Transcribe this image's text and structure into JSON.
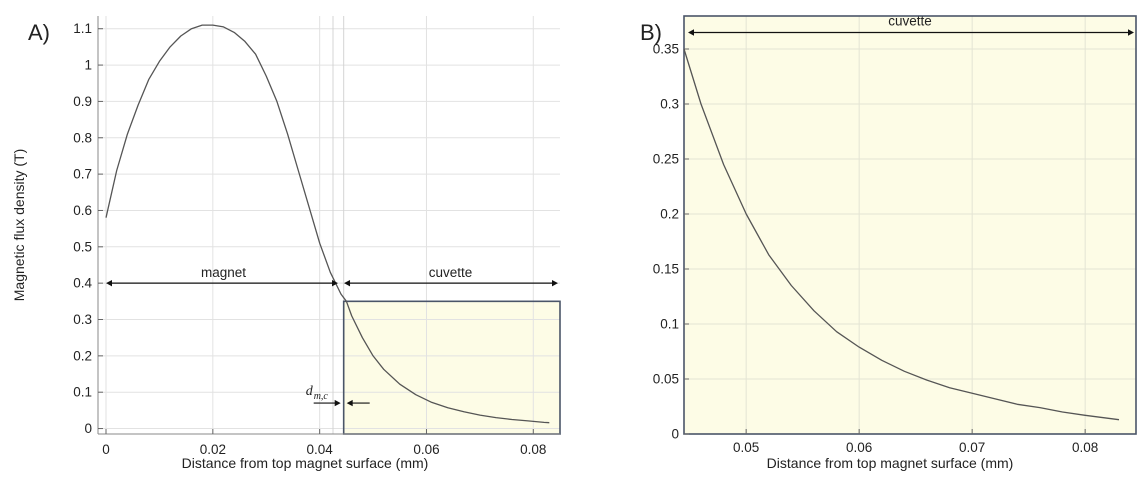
{
  "chart_data": [
    {
      "panel": "A)",
      "type": "line",
      "xlabel": "Distance from top magnet surface (mm)",
      "ylabel": "Magnetic flux density (T)",
      "xlim": [
        -0.0015,
        0.085
      ],
      "ylim": [
        -0.015,
        1.135
      ],
      "xticks": [
        0,
        0.02,
        0.04,
        0.06,
        0.08
      ],
      "xtick_labels": [
        "0",
        "0.02",
        "0.04",
        "0.06",
        "0.08"
      ],
      "yticks": [
        0,
        0.1,
        0.2,
        0.3,
        0.4,
        0.5,
        0.6,
        0.7,
        0.8,
        0.9,
        1,
        1.1
      ],
      "ytick_labels": [
        "0",
        "0.1",
        "0.2",
        "0.3",
        "0.4",
        "0.5",
        "0.6",
        "0.7",
        "0.8",
        "0.9",
        "1",
        "1.1"
      ],
      "grid": true,
      "x": [
        0,
        0.002,
        0.004,
        0.006,
        0.008,
        0.01,
        0.012,
        0.014,
        0.016,
        0.018,
        0.02,
        0.022,
        0.024,
        0.026,
        0.028,
        0.03,
        0.032,
        0.034,
        0.036,
        0.038,
        0.04,
        0.042,
        0.044,
        0.045,
        0.046,
        0.048,
        0.05,
        0.052,
        0.055,
        0.058,
        0.061,
        0.064,
        0.067,
        0.07,
        0.073,
        0.076,
        0.079,
        0.082,
        0.083
      ],
      "y": [
        0.58,
        0.71,
        0.81,
        0.89,
        0.96,
        1.01,
        1.05,
        1.08,
        1.1,
        1.11,
        1.11,
        1.105,
        1.09,
        1.065,
        1.03,
        0.97,
        0.9,
        0.81,
        0.71,
        0.61,
        0.51,
        0.43,
        0.37,
        0.35,
        0.31,
        0.25,
        0.2,
        0.163,
        0.122,
        0.093,
        0.072,
        0.057,
        0.046,
        0.037,
        0.03,
        0.025,
        0.021,
        0.017,
        0.016
      ],
      "annotations": {
        "magnet": {
          "text": "magnet",
          "x_from": 0,
          "x_to": 0.044,
          "y": 0.4
        },
        "cuvette": {
          "text": "cuvette",
          "x_from": 0.044,
          "x_to": 0.085,
          "y": 0.4
        },
        "dmc": {
          "symbol": "d",
          "subscript": "m,c",
          "x": 0.0445,
          "y": 0.07
        },
        "cuvette_box": {
          "x_from": 0.0445,
          "x_to": 0.085,
          "y_from": -0.015,
          "y_to": 0.35
        },
        "divider_lines_x": [
          0.0425,
          0.0445
        ]
      },
      "colors": {
        "curve": "#555555",
        "cuvette_fill": "#fdfce6",
        "box_stroke": "#4a5568"
      }
    },
    {
      "panel": "B)",
      "type": "line",
      "xlabel": "Distance from top magnet surface (mm)",
      "ylabel": "",
      "xlim": [
        0.0445,
        0.0845
      ],
      "ylim": [
        0,
        0.38
      ],
      "xticks": [
        0.05,
        0.06,
        0.07,
        0.08
      ],
      "xtick_labels": [
        "0.05",
        "0.06",
        "0.07",
        "0.08"
      ],
      "yticks": [
        0,
        0.05,
        0.1,
        0.15,
        0.2,
        0.25,
        0.3,
        0.35
      ],
      "ytick_labels": [
        "0",
        "0.05",
        "0.1",
        "0.15",
        "0.2",
        "0.25",
        "0.3",
        "0.35"
      ],
      "grid": true,
      "x": [
        0.0445,
        0.046,
        0.048,
        0.05,
        0.052,
        0.054,
        0.056,
        0.058,
        0.06,
        0.062,
        0.064,
        0.066,
        0.068,
        0.07,
        0.072,
        0.074,
        0.076,
        0.078,
        0.08,
        0.083
      ],
      "y": [
        0.35,
        0.3,
        0.245,
        0.2,
        0.163,
        0.135,
        0.112,
        0.093,
        0.079,
        0.067,
        0.057,
        0.049,
        0.042,
        0.037,
        0.032,
        0.027,
        0.024,
        0.02,
        0.017,
        0.013
      ],
      "annotations": {
        "cuvette": {
          "text": "cuvette",
          "x_from": 0.0445,
          "x_to": 0.0845,
          "y": 0.365
        }
      },
      "colors": {
        "curve": "#555555",
        "cuvette_fill": "#fdfce6",
        "box_stroke": "#4a5568"
      }
    }
  ]
}
